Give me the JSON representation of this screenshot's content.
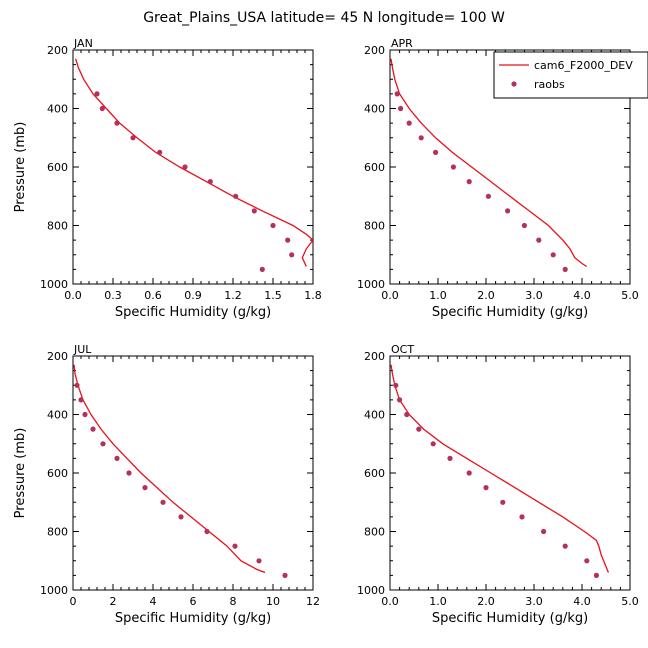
{
  "chart_data": {
    "type": "line",
    "title": "Great_Plains_USA  latitude= 45 N longitude= 100 W",
    "xlabel": "Specific Humidity (g/kg)",
    "ylabel": "Pressure (mb)",
    "legend": {
      "position": "top-right",
      "entries": [
        {
          "name": "cam6_F2000_DEV",
          "style": "line",
          "color": "#e8111b"
        },
        {
          "name": "raobs",
          "style": "marker",
          "color": "#b5305a"
        }
      ]
    },
    "panels": [
      {
        "label": "JAN",
        "xlim": [
          0,
          1.8
        ],
        "ylim": [
          1000,
          200
        ],
        "xticks": [
          0,
          0.3,
          0.6,
          0.9,
          1.2,
          1.5,
          1.8
        ],
        "xtick_labels": [
          "0.0",
          "0.3",
          "0.6",
          "0.9",
          "1.2",
          "1.5",
          "1.8"
        ],
        "yticks": [
          200,
          400,
          600,
          800,
          1000
        ],
        "model": {
          "x": [
            0.02,
            0.04,
            0.08,
            0.15,
            0.25,
            0.35,
            0.48,
            0.62,
            0.8,
            1.0,
            1.2,
            1.42,
            1.65,
            1.75,
            1.8,
            1.75,
            1.72,
            1.75
          ],
          "y": [
            230,
            260,
            300,
            350,
            400,
            450,
            500,
            550,
            600,
            650,
            700,
            750,
            800,
            830,
            850,
            880,
            910,
            940
          ]
        },
        "obs": {
          "x": [
            0.18,
            0.22,
            0.33,
            0.45,
            0.65,
            0.84,
            1.03,
            1.22,
            1.36,
            1.5,
            1.61,
            1.64,
            1.42
          ],
          "y": [
            350,
            400,
            450,
            500,
            550,
            600,
            650,
            700,
            750,
            800,
            850,
            900,
            950
          ]
        }
      },
      {
        "label": "APR",
        "xlim": [
          0,
          5.0
        ],
        "ylim": [
          1000,
          200
        ],
        "xticks": [
          0,
          1,
          2,
          3,
          4,
          5
        ],
        "xtick_labels": [
          "0.0",
          "1.0",
          "2.0",
          "3.0",
          "4.0",
          "5.0"
        ],
        "yticks": [
          200,
          400,
          600,
          800,
          1000
        ],
        "model": {
          "x": [
            0.02,
            0.05,
            0.1,
            0.2,
            0.4,
            0.65,
            0.95,
            1.3,
            1.7,
            2.1,
            2.5,
            2.9,
            3.3,
            3.6,
            3.75,
            3.85,
            4.0,
            4.1
          ],
          "y": [
            230,
            260,
            300,
            350,
            400,
            450,
            500,
            550,
            600,
            650,
            700,
            750,
            800,
            850,
            880,
            910,
            930,
            940
          ]
        },
        "obs": {
          "x": [
            0.15,
            0.22,
            0.4,
            0.65,
            0.95,
            1.32,
            1.65,
            2.05,
            2.45,
            2.8,
            3.1,
            3.4,
            3.65
          ],
          "y": [
            350,
            400,
            450,
            500,
            550,
            600,
            650,
            700,
            750,
            800,
            850,
            900,
            950
          ]
        }
      },
      {
        "label": "JUL",
        "xlim": [
          0,
          12
        ],
        "ylim": [
          1000,
          200
        ],
        "xticks": [
          0,
          2,
          4,
          6,
          8,
          10,
          12
        ],
        "xtick_labels": [
          "0",
          "2",
          "4",
          "6",
          "8",
          "10",
          "12"
        ],
        "yticks": [
          200,
          400,
          600,
          800,
          1000
        ],
        "model": {
          "x": [
            0.05,
            0.1,
            0.25,
            0.5,
            0.9,
            1.4,
            2.0,
            2.7,
            3.4,
            4.2,
            5.0,
            5.9,
            6.8,
            7.7,
            8.4,
            9.2,
            9.6
          ],
          "y": [
            230,
            260,
            300,
            350,
            400,
            450,
            500,
            550,
            600,
            650,
            700,
            750,
            800,
            850,
            900,
            930,
            940
          ]
        },
        "obs": {
          "x": [
            0.2,
            0.4,
            0.6,
            1.0,
            1.5,
            2.2,
            2.8,
            3.6,
            4.5,
            5.4,
            6.7,
            8.1,
            9.3,
            10.6
          ],
          "y": [
            300,
            350,
            400,
            450,
            500,
            550,
            600,
            650,
            700,
            750,
            800,
            850,
            900,
            950
          ]
        }
      },
      {
        "label": "OCT",
        "xlim": [
          0,
          5.0
        ],
        "ylim": [
          1000,
          200
        ],
        "xticks": [
          0,
          1,
          2,
          3,
          4,
          5
        ],
        "xtick_labels": [
          "0.0",
          "1.0",
          "2.0",
          "3.0",
          "4.0",
          "5.0"
        ],
        "yticks": [
          200,
          400,
          600,
          800,
          1000
        ],
        "model": {
          "x": [
            0.02,
            0.05,
            0.1,
            0.2,
            0.4,
            0.7,
            1.1,
            1.6,
            2.1,
            2.6,
            3.1,
            3.6,
            4.05,
            4.3,
            4.35,
            4.4,
            4.5,
            4.55
          ],
          "y": [
            230,
            260,
            300,
            350,
            400,
            450,
            500,
            550,
            600,
            650,
            700,
            750,
            800,
            830,
            850,
            880,
            920,
            940
          ]
        },
        "obs": {
          "x": [
            0.12,
            0.2,
            0.35,
            0.6,
            0.9,
            1.25,
            1.65,
            2.0,
            2.35,
            2.75,
            3.2,
            3.65,
            4.1,
            4.3
          ],
          "y": [
            300,
            350,
            400,
            450,
            500,
            550,
            600,
            650,
            700,
            750,
            800,
            850,
            900,
            950
          ]
        }
      }
    ]
  }
}
